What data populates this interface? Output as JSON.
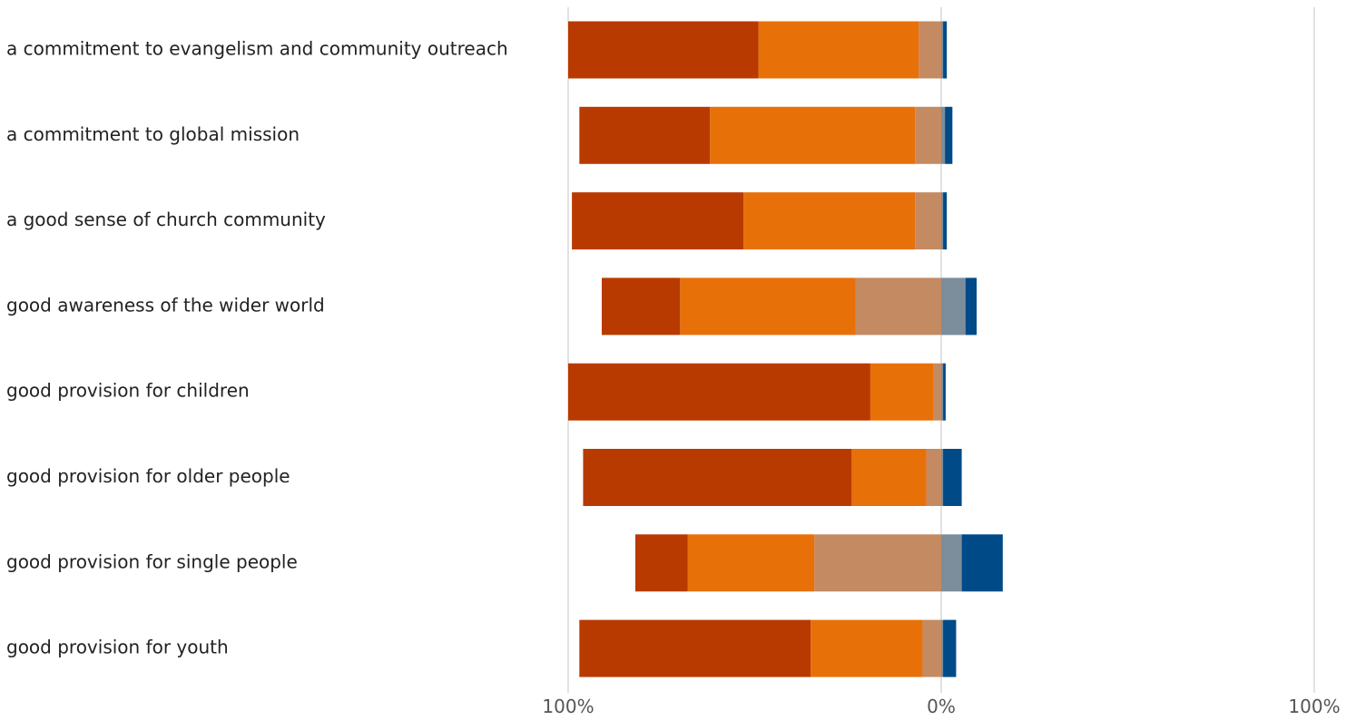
{
  "chart_data": {
    "type": "bar",
    "orientation": "horizontal",
    "layout": "diverging-stacked",
    "categories": [
      "a commitment to evangelism and community outreach",
      "a commitment to global mission",
      "a good sense of church community",
      "good awareness of the wider world",
      "good provision for children",
      "good provision for older people",
      "good provision for single people",
      "good provision for youth"
    ],
    "series": [
      {
        "side": "negative",
        "color": "#b83a00",
        "values": [
          51,
          35,
          46,
          21,
          81,
          72,
          14,
          62
        ]
      },
      {
        "side": "negative",
        "color": "#e87008",
        "values": [
          43,
          55,
          46,
          47,
          17,
          20,
          34,
          30
        ]
      },
      {
        "side": "negative",
        "color": "#c48a62",
        "values": [
          6,
          7,
          7,
          23,
          2,
          4,
          34,
          5
        ]
      },
      {
        "side": "positive",
        "color": "#7c8d9c",
        "values": [
          0.5,
          1,
          0.5,
          6.5,
          0.5,
          0.5,
          5.5,
          0.5
        ]
      },
      {
        "side": "positive",
        "color": "#004a87",
        "values": [
          1,
          2,
          1,
          3,
          0.7,
          5,
          11,
          3.5
        ]
      }
    ],
    "xlim": [
      -100,
      100
    ],
    "xticks": [
      {
        "value": -100,
        "label": "100%"
      },
      {
        "value": 0,
        "label": "0%"
      },
      {
        "value": 100,
        "label": "100%"
      }
    ],
    "grid": true,
    "title": "",
    "xlabel": "",
    "ylabel": ""
  }
}
